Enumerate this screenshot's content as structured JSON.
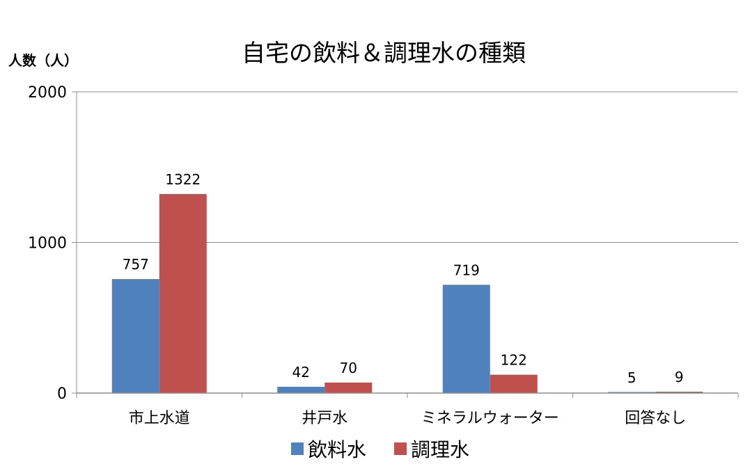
{
  "chart_data": {
    "type": "bar",
    "title": "自宅の飲料＆調理水の種類",
    "ylabel": "人数（人）",
    "xlabel": "",
    "categories": [
      "市上水道",
      "井戸水",
      "ミネラルウォーター",
      "回答なし"
    ],
    "series": [
      {
        "name": "飲料水",
        "values": [
          757,
          42,
          719,
          5
        ],
        "color": "#4F81BD"
      },
      {
        "name": "調理水",
        "values": [
          1322,
          70,
          122,
          9
        ],
        "color": "#C0504D"
      }
    ],
    "ylim": [
      0,
      2000
    ],
    "yticks": [
      "0",
      "1000",
      "2000"
    ],
    "grid": true,
    "legend_position": "bottom"
  }
}
